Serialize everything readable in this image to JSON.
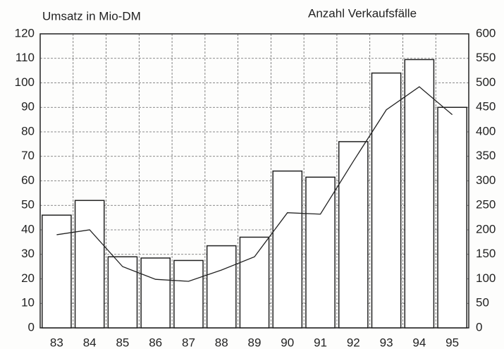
{
  "chart_data": {
    "type": "bar-line",
    "ylabel": "Umsatz in Mio-DM",
    "y2label": "Anzahl Verkaufsfälle",
    "categories": [
      "83",
      "84",
      "85",
      "86",
      "87",
      "88",
      "89",
      "90",
      "91",
      "92",
      "93",
      "94",
      "95"
    ],
    "series": [
      {
        "type": "bar",
        "color": "#ffffff",
        "values": [
          46,
          52,
          29,
          28.5,
          27.5,
          33.5,
          37,
          64,
          61.5,
          76,
          104,
          109.5,
          90
        ]
      },
      {
        "type": "line",
        "axis": "y2",
        "color": "#222222",
        "values": [
          190,
          200,
          125,
          99,
          95,
          118,
          145,
          235,
          232,
          340,
          445,
          492,
          435
        ]
      }
    ],
    "ylim": [
      0,
      120
    ],
    "yticks": [
      0,
      10,
      20,
      30,
      40,
      50,
      60,
      70,
      80,
      90,
      100,
      110,
      120
    ],
    "y2lim": [
      0,
      600
    ],
    "y2ticks": [
      0,
      50,
      100,
      150,
      200,
      250,
      300,
      350,
      400,
      450,
      500,
      550,
      600
    ],
    "grid": true
  }
}
